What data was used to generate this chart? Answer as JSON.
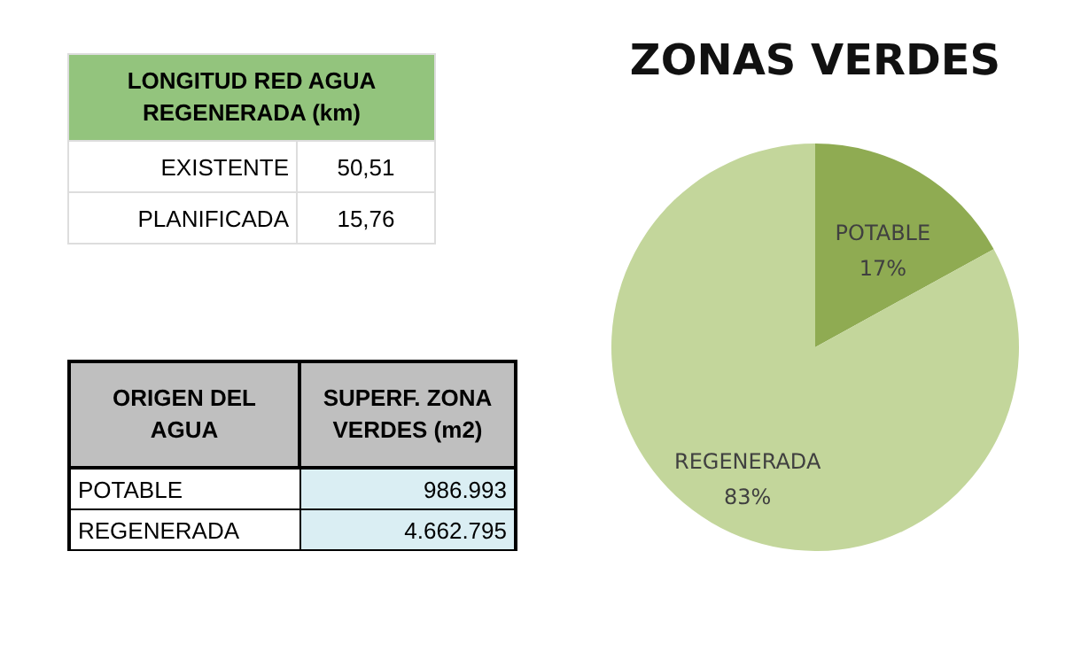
{
  "chart_data": [
    {
      "type": "other",
      "title": "LONGITUD RED AGUA REGENERADA (km)",
      "annotations": [
        "EXISTENTE",
        "50,51",
        "PLANIFICADA",
        "15,76"
      ]
    },
    {
      "type": "other",
      "annotations": [
        "ORIGEN DEL AGUA",
        "SUPERF. ZONA VERDES (m2)",
        "POTABLE",
        "986.993",
        "REGENERADA",
        "4.662.795"
      ]
    },
    {
      "type": "pie",
      "title": "ZONAS VERDES",
      "categories": [
        "POTABLE",
        "REGENERADA"
      ],
      "values": [
        17,
        83
      ],
      "value_labels": [
        "17%",
        "83%"
      ],
      "colors": [
        "#8fab52",
        "#c3d69b"
      ],
      "legend": false
    }
  ]
}
